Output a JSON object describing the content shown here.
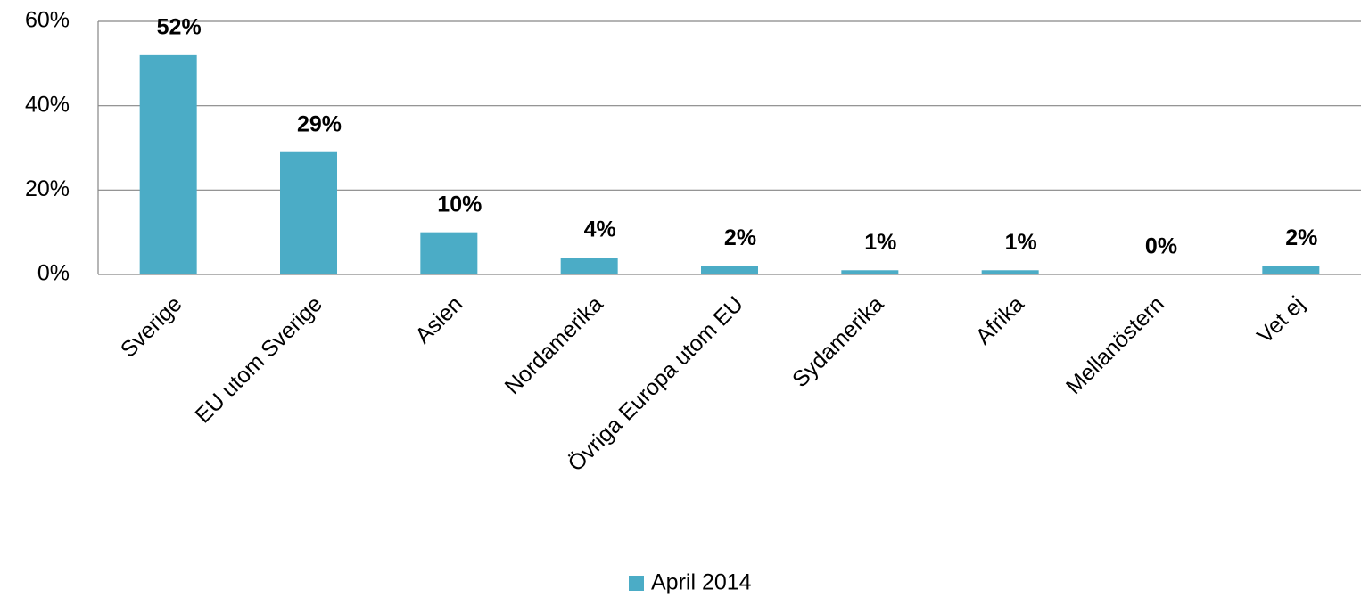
{
  "chart_data": {
    "type": "bar",
    "categories": [
      "Sverige",
      "EU utom Sverige",
      "Asien",
      "Nordamerika",
      "Övriga Europa utom EU",
      "Sydamerika",
      "Afrika",
      "Mellanöstern",
      "Vet ej"
    ],
    "series": [
      {
        "name": "April 2014",
        "color": "#4bacc6",
        "values": [
          52,
          29,
          10,
          4,
          2,
          1,
          1,
          0,
          2
        ],
        "value_labels": [
          "52%",
          "29%",
          "10%",
          "4%",
          "2%",
          "1%",
          "1%",
          "0%",
          "2%"
        ]
      }
    ],
    "ylim": [
      0,
      60
    ],
    "yticks": [
      {
        "value": 0,
        "label": "0%"
      },
      {
        "value": 20,
        "label": "20%"
      },
      {
        "value": 40,
        "label": "40%"
      },
      {
        "value": 60,
        "label": "60%"
      }
    ],
    "grid": true,
    "legend": "bottom"
  }
}
